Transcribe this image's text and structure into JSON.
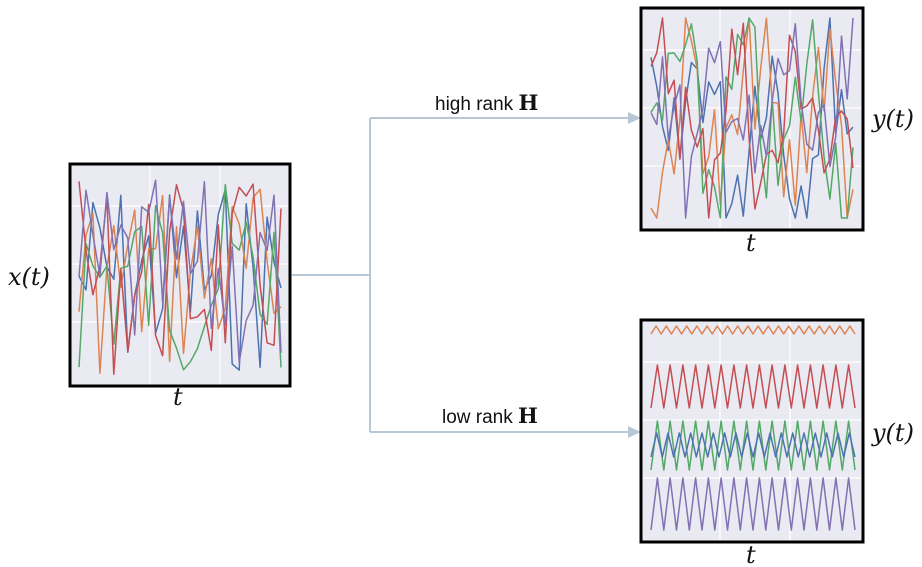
{
  "diagram": {
    "input": {
      "label": "x(t)",
      "axis": "t"
    },
    "outputs": [
      {
        "id": "high",
        "edge_prefix": "high rank ",
        "edge_symbol": "H",
        "label": "y(t)",
        "axis": "t"
      },
      {
        "id": "low",
        "edge_prefix": "low rank ",
        "edge_symbol": "H",
        "label": "y(t)",
        "axis": "t"
      }
    ]
  },
  "colors": {
    "panel_bg": "#eaeaf2",
    "grid": "#ffffff",
    "frame": "#000000",
    "arrow": "#b7c7d6",
    "series": [
      "#4c72b0",
      "#dd8452",
      "#55a868",
      "#c44e52",
      "#8172b3"
    ]
  }
}
